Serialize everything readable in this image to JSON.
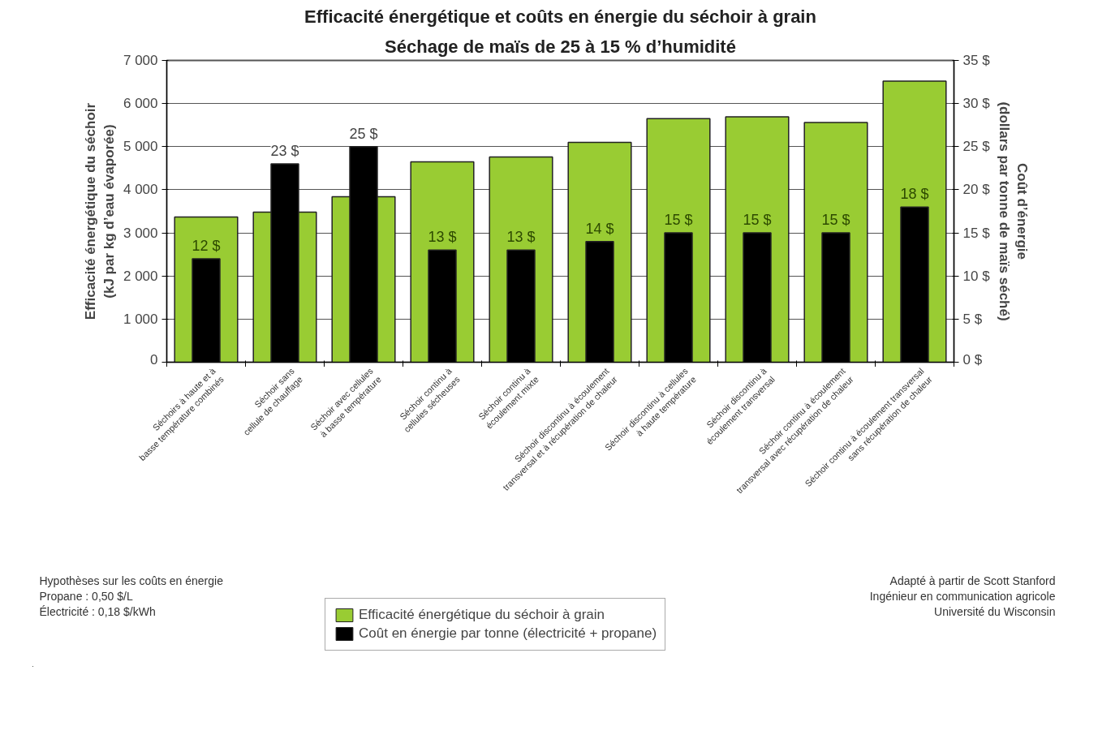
{
  "chart_data": {
    "type": "bar",
    "title": "Efficacité énergétique et coûts en énergie du séchoir à grain",
    "subtitle": "Séchage de maïs de 25 à 15 % d’humidité",
    "ylabel": "Efficacité énergétique du séchoir\n(kJ par kg d’eau évaporée)",
    "y2label": "Coût d’énergie\n(dollars par tonne de maïs séché)",
    "categories": [
      "Séchoirs à haute et à\nbasse température combinés",
      "Séchoir sans\ncellule de chauffage",
      "Séchoir avec cellules\nà basse température",
      "Séchoir continu à\ncellules sécheuses",
      "Séchoir continu à\nécoulement mixte",
      "Séchoir discontinu à écoulement\ntransversal et à récupération de chaleur",
      "Séchoir discontinu à cellules\nà haute température",
      "Séchoir discontinu à\nécoulement transversal",
      "Séchoir continu à écoulement\ntransversal avec récupération de chaleur",
      "Séchoir continu à écoulement transversal\nsans récupération de chaleur"
    ],
    "series": [
      {
        "name": "Efficacité énergétique du séchoir à grain",
        "color": "#99cc33",
        "values": [
          3370,
          3480,
          3840,
          4650,
          4760,
          5100,
          5650,
          5690,
          5560,
          6520
        ]
      },
      {
        "name": "Coût en énergie par tonne (électricité + propane)",
        "color": "#000000",
        "axis": "y2",
        "values": [
          12,
          23,
          25,
          13,
          13,
          14,
          15,
          15,
          15,
          18
        ],
        "value_labels": [
          "12 $",
          "23 $",
          "25 $",
          "13 $",
          "13 $",
          "14 $",
          "15 $",
          "15 $",
          "15 $",
          "18 $"
        ]
      }
    ],
    "ylim": [
      0,
      7000
    ],
    "yticks": [
      0,
      {
        "value": 1000,
        "label": "1 000"
      },
      {
        "value": 2000,
        "label": "2 000"
      },
      {
        "value": 3000,
        "label": "3 000"
      },
      {
        "value": 4000,
        "label": "4 000"
      },
      {
        "value": 5000,
        "label": "5 000"
      },
      {
        "value": 6000,
        "label": "6 000"
      },
      {
        "value": 7000,
        "label": "7 000"
      }
    ],
    "y2lim": [
      0,
      35
    ],
    "y2ticks": [
      {
        "value": 0,
        "label": "0 $"
      },
      {
        "value": 5,
        "label": "5 $"
      },
      {
        "value": 10,
        "label": "10 $"
      },
      {
        "value": 15,
        "label": "15 $"
      },
      {
        "value": 20,
        "label": "20 $"
      },
      {
        "value": 25,
        "label": "25 $"
      },
      {
        "value": 30,
        "label": "30 $"
      },
      {
        "value": 35,
        "label": "35 $"
      }
    ],
    "grid": "y",
    "legend": "bottom",
    "annotations": [
      "Hypothèses sur les coûts en énergie\nPropane : 0,50 $/L\nÉlectricité : 0,18 $/kWh",
      "Adapté à partir de Scott Stanford\nIngénieur en communication agricole\nUniversité du Wisconsin"
    ]
  }
}
